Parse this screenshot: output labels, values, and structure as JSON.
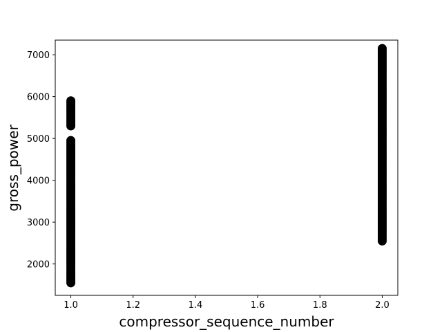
{
  "chart_data": {
    "type": "scatter",
    "title": "",
    "xlabel": "compressor_sequence_number",
    "ylabel": "gross_power",
    "xlim": [
      0.95,
      2.05
    ],
    "ylim": [
      1250,
      7350
    ],
    "xticks": [
      1.0,
      1.2,
      1.4,
      1.6,
      1.8,
      2.0
    ],
    "xtick_labels": [
      "1.0",
      "1.2",
      "1.4",
      "1.6",
      "1.8",
      "2.0"
    ],
    "yticks": [
      2000,
      3000,
      4000,
      5000,
      6000,
      7000
    ],
    "ytick_labels": [
      "2000",
      "3000",
      "4000",
      "5000",
      "6000",
      "7000"
    ],
    "grid": false,
    "marker_color": "#000000",
    "series": [
      {
        "x": 1.0,
        "y": [
          1550,
          1600,
          1650,
          1700,
          1750,
          1800,
          1850,
          1900,
          1950,
          2000,
          2050,
          2100,
          2150,
          2200,
          2250,
          2300,
          2350,
          2400,
          2450,
          2500,
          2550,
          2600,
          2650,
          2700,
          2750,
          2800,
          2850,
          2900,
          2950,
          3000,
          3050,
          3100,
          3150,
          3200,
          3250,
          3300,
          3350,
          3400,
          3450,
          3500,
          3550,
          3600,
          3650,
          3700,
          3750,
          3800,
          3850,
          3900,
          3950,
          4000,
          4050,
          4100,
          4150,
          4200,
          4250,
          4300,
          4350,
          4400,
          4450,
          4500,
          4550,
          4600,
          4650,
          4700,
          4750,
          4800,
          4850,
          4900,
          4950,
          5300,
          5350,
          5400,
          5450,
          5500,
          5550,
          5600,
          5650,
          5700,
          5750,
          5800,
          5850,
          5900
        ]
      },
      {
        "x": 2.0,
        "y": [
          2550,
          2600,
          2650,
          2700,
          2750,
          2800,
          2850,
          2900,
          2950,
          3000,
          3050,
          3100,
          3150,
          3200,
          3250,
          3300,
          3350,
          3400,
          3450,
          3500,
          3550,
          3600,
          3650,
          3700,
          3750,
          3800,
          3850,
          3900,
          3950,
          4000,
          4050,
          4100,
          4150,
          4200,
          4250,
          4300,
          4350,
          4400,
          4450,
          4500,
          4550,
          4600,
          4650,
          4700,
          4750,
          4800,
          4850,
          4900,
          4950,
          5000,
          5050,
          5100,
          5150,
          5200,
          5250,
          5300,
          5350,
          5400,
          5450,
          5500,
          5550,
          5600,
          5650,
          5700,
          5750,
          5800,
          5850,
          5900,
          5950,
          6000,
          6050,
          6100,
          6150,
          6200,
          6250,
          6300,
          6350,
          6400,
          6450,
          6500,
          6550,
          6600,
          6650,
          6700,
          6750,
          6800,
          6850,
          6900,
          6950,
          7000,
          7050,
          7100,
          7150
        ]
      }
    ]
  }
}
